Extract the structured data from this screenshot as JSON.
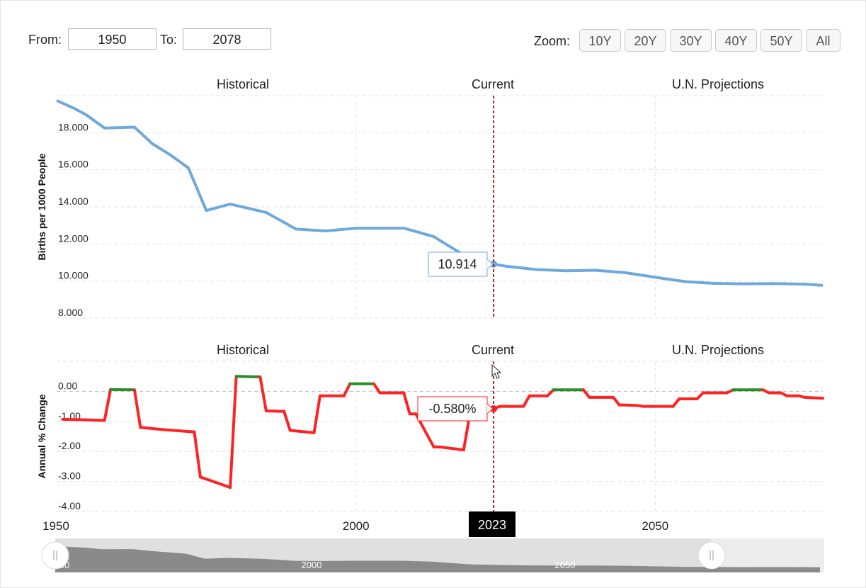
{
  "range_selector": {
    "from_label": "From:",
    "from_value": "1950",
    "to_label": "To:",
    "to_value": "2078"
  },
  "zoom": {
    "label": "Zoom:",
    "buttons": [
      "10Y",
      "20Y",
      "30Y",
      "40Y",
      "50Y",
      "All"
    ]
  },
  "colors": {
    "birth_line": "#6fa8dc",
    "positive": "#2a8c2a",
    "negative": "#ff2222",
    "current_line": "#b22222",
    "grid": "#e2e2e2"
  },
  "chart_data": [
    {
      "type": "line",
      "ylabel": "Births per 1000 People",
      "ylim": [
        8,
        20
      ],
      "yticks": [
        "8.000",
        "10.000",
        "12.000",
        "14.000",
        "16.000",
        "18.000"
      ],
      "xlim": [
        1950,
        2078
      ],
      "grid": true,
      "section_labels": [
        "Historical",
        "Current",
        "U.N. Projections"
      ],
      "current_year": 2023,
      "tooltip": "10.914",
      "series": [
        {
          "x": [
            1950,
            1953,
            1955,
            1958,
            1963,
            1966,
            1969,
            1972,
            1975,
            1979,
            1985,
            1990,
            1995,
            2000,
            2003,
            2008,
            2013,
            2016,
            2018,
            2020,
            2022,
            2023,
            2025,
            2030,
            2035,
            2040,
            2045,
            2050,
            2055,
            2060,
            2065,
            2070,
            2075,
            2078
          ],
          "y": [
            19.74,
            19.3,
            18.95,
            18.25,
            18.3,
            17.4,
            16.8,
            16.1,
            13.8,
            14.15,
            13.7,
            12.8,
            12.7,
            12.85,
            12.85,
            12.85,
            12.4,
            11.8,
            11.4,
            11.1,
            10.95,
            10.914,
            10.8,
            10.62,
            10.55,
            10.58,
            10.45,
            10.2,
            9.97,
            9.87,
            9.85,
            9.86,
            9.83,
            9.76
          ]
        }
      ]
    },
    {
      "type": "line",
      "ylabel": "Annual % Change",
      "ylim": [
        -4,
        1
      ],
      "yticks": [
        "-4.00",
        "-3.00",
        "-2.00",
        "-1.00",
        "0.00"
      ],
      "xlim": [
        1950,
        2078
      ],
      "xticks": [
        "1950",
        "2000",
        "2050"
      ],
      "grid": true,
      "section_labels": [
        "Historical",
        "Current",
        "U.N. Projections"
      ],
      "current_year": 2023,
      "current_year_label": "2023",
      "tooltip": "-0.580%",
      "series": [
        {
          "x": [
            1951,
            1955,
            1958,
            1959,
            1963,
            1964,
            1968,
            1973,
            1974,
            1979,
            1980,
            1984,
            1985,
            1988,
            1989,
            1993,
            1994,
            1998,
            1999,
            2003,
            2004,
            2008,
            2009,
            2010,
            2013,
            2014,
            2018,
            2019,
            2023,
            2024,
            2028,
            2029,
            2032,
            2033,
            2038,
            2039,
            2043,
            2044,
            2047,
            2048,
            2053,
            2054,
            2057,
            2058,
            2062,
            2063,
            2068,
            2069,
            2071,
            2072,
            2074,
            2075,
            2078
          ],
          "y": [
            -0.93,
            -0.95,
            -0.97,
            0.06,
            0.05,
            -1.2,
            -1.28,
            -1.35,
            -2.85,
            -3.2,
            0.5,
            0.48,
            -0.65,
            -0.67,
            -1.3,
            -1.38,
            -0.15,
            -0.15,
            0.25,
            0.25,
            -0.05,
            -0.05,
            -0.75,
            -0.75,
            -1.85,
            -1.85,
            -1.95,
            -0.8,
            -0.58,
            -0.5,
            -0.5,
            -0.15,
            -0.15,
            0.05,
            0.05,
            -0.2,
            -0.2,
            -0.45,
            -0.47,
            -0.5,
            -0.5,
            -0.25,
            -0.25,
            -0.05,
            -0.05,
            0.05,
            0.05,
            -0.05,
            -0.05,
            -0.15,
            -0.15,
            -0.2,
            -0.23
          ]
        }
      ]
    }
  ],
  "navigator": {
    "tick_labels": [
      "50",
      "2000",
      "2050"
    ]
  }
}
